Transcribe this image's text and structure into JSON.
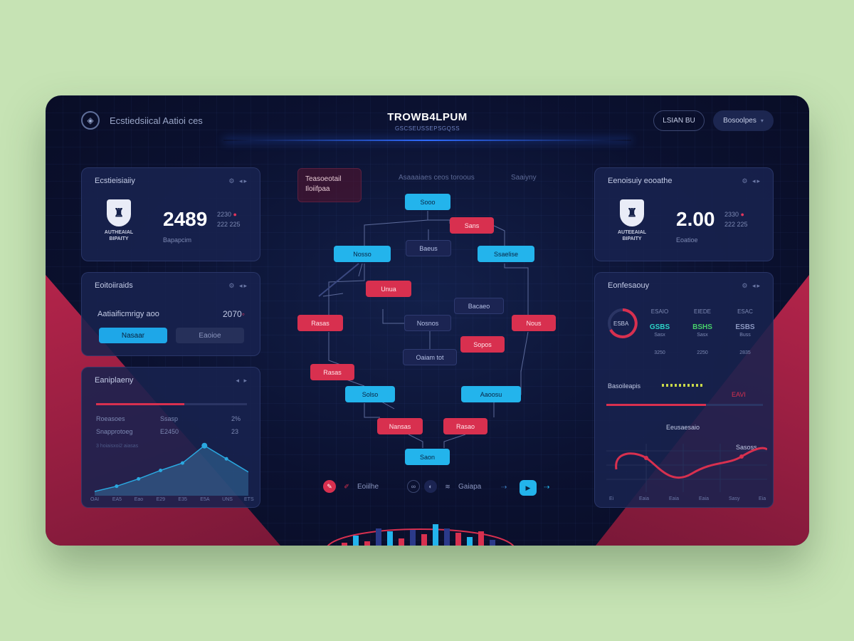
{
  "header": {
    "brand_name": "Ecstiedsiical Aatioi",
    "brand_suffix": "ces",
    "title": "TROWB4LPUM",
    "subtitle": "GSCSEUSSEPSGQSS",
    "login_label": "LSIAN BU",
    "menu_label": "Bosoolpes"
  },
  "left_top_panel": {
    "title": "Ecstieisiaiiy",
    "crest_line1": "AUTHEAIAL",
    "crest_line2": "BIPAITY",
    "big_value": "2489",
    "side_top": "2230",
    "side_bottom": "222 225",
    "caption": "Bapapcim"
  },
  "left_mid_panel": {
    "title": "Eoitoiiraids",
    "row_label": "Aatiaificmrigy aoo",
    "row_value": "2070",
    "primary_btn": "Nasaar",
    "secondary_btn": "Eaoioe"
  },
  "left_chart_panel": {
    "title": "Eaniplaeny",
    "rows": [
      {
        "label": "Roeasoes",
        "value": "Ssasp",
        "tail": "2%"
      },
      {
        "label": "Snapprotoeg",
        "value": "E2450",
        "tail": "23"
      }
    ],
    "note": "3 hoiaisxoi2 aiasas",
    "x_ticks": [
      "OAI",
      "EA5",
      "Eao",
      "E29",
      "E35",
      "E5A",
      "UNS",
      "ETS"
    ],
    "colors": {
      "area": "#3a7fb0",
      "line": "#2aa8e0",
      "bar_red": "#d8304f"
    }
  },
  "chart_data": {
    "type": "area",
    "title": "Eaniplaeny",
    "categories": [
      "OAI",
      "EA5",
      "Eao",
      "E29",
      "E35",
      "E5A",
      "UNS",
      "ETS"
    ],
    "values": [
      8,
      18,
      32,
      48,
      62,
      95,
      70,
      45
    ],
    "ylim": [
      0,
      100
    ]
  },
  "diagram": {
    "label_line1": "Teasoeotail",
    "label_line2": "Iloiifpaa",
    "header_center": "Asaaaiaes ceos toroous",
    "header_right": "Saaiyny",
    "nodes": [
      {
        "id": "n1",
        "text": "Sooo",
        "kind": "blue"
      },
      {
        "id": "n2",
        "text": "Sans",
        "kind": "red"
      },
      {
        "id": "n3",
        "text": "Nosso",
        "kind": "blue"
      },
      {
        "id": "n4",
        "text": "Baeus",
        "kind": "navy"
      },
      {
        "id": "n5",
        "text": "Ssaelise",
        "kind": "blue"
      },
      {
        "id": "n6",
        "text": "Unua",
        "kind": "red"
      },
      {
        "id": "n7",
        "text": "Bacaeo",
        "kind": "navy"
      },
      {
        "id": "n8",
        "text": "Rasas",
        "kind": "red"
      },
      {
        "id": "n9",
        "text": "Nosnos",
        "kind": "navy"
      },
      {
        "id": "n10",
        "text": "Nous",
        "kind": "red"
      },
      {
        "id": "n11",
        "text": "Sopos",
        "kind": "red"
      },
      {
        "id": "n12",
        "text": "Oaiam tot",
        "kind": "navy"
      },
      {
        "id": "n13",
        "text": "Rasas",
        "kind": "red"
      },
      {
        "id": "n14",
        "text": "Solso",
        "kind": "blue"
      },
      {
        "id": "n15",
        "text": "Aaoosu",
        "kind": "blue"
      },
      {
        "id": "n16",
        "text": "Nansas",
        "kind": "red"
      },
      {
        "id": "n17",
        "text": "Rasao",
        "kind": "red"
      },
      {
        "id": "n18",
        "text": "Saon",
        "kind": "blue"
      }
    ],
    "tools_left": "Eoiilhe",
    "tools_right": "Gaiapa"
  },
  "right_top_panel": {
    "title": "Eenoisuiy eooathe",
    "crest_line1": "AUTEEAIAL",
    "crest_line2": "BIPAITY",
    "big_value": "2.00",
    "side_top": "2330",
    "side_bottom": "222 225",
    "caption": "Eoatioe"
  },
  "right_bottom_panel": {
    "title": "Eonfesaouy",
    "gauge_label": "ESBA",
    "stats": [
      {
        "top": "ESAIO",
        "value": "GSBS",
        "color": "#2bd4c8",
        "bottom": "Sasx",
        "sub": "3250"
      },
      {
        "top": "EIEDE",
        "value": "BSHS",
        "color": "#48d06a",
        "bottom": "Sasx",
        "sub": "2250"
      },
      {
        "top": "ESAC",
        "value": "ESBS",
        "color": "#8b97c0",
        "bottom": "Buss",
        "sub": "2835"
      }
    ],
    "bar_label": "Basoileapis",
    "bar_value": "EAVI",
    "chart_label": "Eeusaesaio",
    "chart_tag": "Sasoss",
    "x_ticks": [
      "Ei",
      "Eaia",
      "Eaia",
      "Eaia",
      "Sasy",
      "Eia"
    ]
  },
  "bottom_bars": {
    "colors": {
      "red": "#d8304f",
      "blue": "#23b4ec",
      "navy": "#2b3a8a"
    }
  }
}
